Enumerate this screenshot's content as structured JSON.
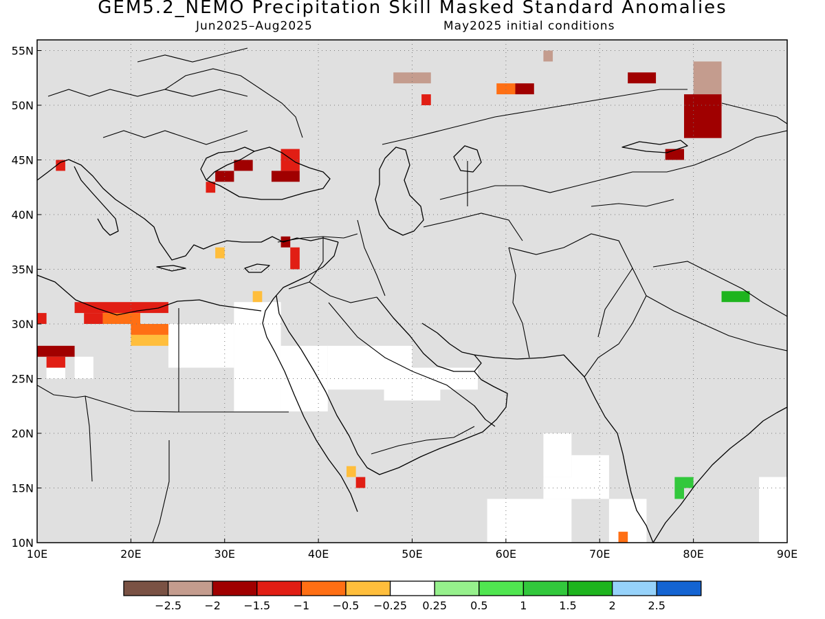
{
  "header": {
    "title": "GEM5.2_NEMO Precipitation Skill Masked Standard Anomalies",
    "season": "Jun2025–Aug2025",
    "init": "May2025 initial conditions"
  },
  "map": {
    "background_color": "#e0e0e0",
    "land_outline_color": "#000000",
    "lon_ticks": [
      "10E",
      "20E",
      "30E",
      "40E",
      "50E",
      "60E",
      "70E",
      "80E",
      "90E"
    ],
    "lat_ticks": [
      "10N",
      "15N",
      "20N",
      "25N",
      "30N",
      "35N",
      "40N",
      "45N",
      "50N",
      "55N"
    ],
    "extent": {
      "lon": [
        10,
        90
      ],
      "lat": [
        10,
        56
      ]
    },
    "anomaly_regions": [
      {
        "lon": [
          10,
          11
        ],
        "lat": [
          30,
          31
        ],
        "bin": -1.0
      },
      {
        "lon": [
          10,
          14
        ],
        "lat": [
          27,
          28
        ],
        "bin": -1.5
      },
      {
        "lon": [
          11,
          13
        ],
        "lat": [
          26,
          27
        ],
        "bin": -1.0
      },
      {
        "lon": [
          12,
          13
        ],
        "lat": [
          44,
          45
        ],
        "bin": -1.0
      },
      {
        "lon": [
          14,
          24
        ],
        "lat": [
          31,
          32
        ],
        "bin": -1.0
      },
      {
        "lon": [
          15,
          17
        ],
        "lat": [
          30,
          31
        ],
        "bin": -1.0
      },
      {
        "lon": [
          17,
          21
        ],
        "lat": [
          30,
          31
        ],
        "bin": -0.5
      },
      {
        "lon": [
          20,
          24
        ],
        "lat": [
          29,
          30
        ],
        "bin": -0.5
      },
      {
        "lon": [
          20,
          24
        ],
        "lat": [
          28,
          29
        ],
        "bin": -0.25
      },
      {
        "lon": [
          28,
          29
        ],
        "lat": [
          42,
          43
        ],
        "bin": -1.0
      },
      {
        "lon": [
          29,
          31
        ],
        "lat": [
          43,
          44
        ],
        "bin": -1.5
      },
      {
        "lon": [
          31,
          33
        ],
        "lat": [
          44,
          45
        ],
        "bin": -1.5
      },
      {
        "lon": [
          29,
          30
        ],
        "lat": [
          36,
          37
        ],
        "bin": -0.25
      },
      {
        "lon": [
          33,
          34
        ],
        "lat": [
          32,
          33
        ],
        "bin": -0.25
      },
      {
        "lon": [
          36,
          38
        ],
        "lat": [
          44,
          46
        ],
        "bin": -1.0
      },
      {
        "lon": [
          35,
          38
        ],
        "lat": [
          43,
          44
        ],
        "bin": -1.5
      },
      {
        "lon": [
          36,
          37
        ],
        "lat": [
          37,
          38
        ],
        "bin": -1.5
      },
      {
        "lon": [
          37,
          38
        ],
        "lat": [
          35,
          37
        ],
        "bin": -1.0
      },
      {
        "lon": [
          43,
          44
        ],
        "lat": [
          16,
          17
        ],
        "bin": -0.25
      },
      {
        "lon": [
          44,
          45
        ],
        "lat": [
          15,
          16
        ],
        "bin": -1.0
      },
      {
        "lon": [
          48,
          52
        ],
        "lat": [
          52,
          53
        ],
        "bin": -2.0
      },
      {
        "lon": [
          51,
          52
        ],
        "lat": [
          50,
          51
        ],
        "bin": -1.0
      },
      {
        "lon": [
          59,
          61
        ],
        "lat": [
          51,
          52
        ],
        "bin": -0.5
      },
      {
        "lon": [
          61,
          63
        ],
        "lat": [
          51,
          52
        ],
        "bin": -1.5
      },
      {
        "lon": [
          64,
          65
        ],
        "lat": [
          54,
          55
        ],
        "bin": -2.0
      },
      {
        "lon": [
          73,
          76
        ],
        "lat": [
          52,
          53
        ],
        "bin": -1.5
      },
      {
        "lon": [
          80,
          83
        ],
        "lat": [
          51,
          54
        ],
        "bin": -2.0
      },
      {
        "lon": [
          79,
          83
        ],
        "lat": [
          47,
          51
        ],
        "bin": -1.5
      },
      {
        "lon": [
          77,
          79
        ],
        "lat": [
          45,
          46
        ],
        "bin": -1.5
      },
      {
        "lon": [
          83,
          86
        ],
        "lat": [
          32,
          33
        ],
        "bin": 1.5
      },
      {
        "lon": [
          78,
          80
        ],
        "lat": [
          15,
          16
        ],
        "bin": 1.0
      },
      {
        "lon": [
          78,
          79
        ],
        "lat": [
          14,
          15
        ],
        "bin": 1.0
      },
      {
        "lon": [
          72,
          73
        ],
        "lat": [
          10,
          11
        ],
        "bin": -0.5
      }
    ],
    "no_skill_regions": [
      {
        "lon": [
          24,
          31
        ],
        "lat": [
          26,
          30
        ]
      },
      {
        "lon": [
          31,
          36
        ],
        "lat": [
          22,
          32
        ]
      },
      {
        "lon": [
          36,
          41
        ],
        "lat": [
          22,
          28
        ]
      },
      {
        "lon": [
          41,
          50
        ],
        "lat": [
          24,
          28
        ]
      },
      {
        "lon": [
          47,
          53
        ],
        "lat": [
          23,
          26
        ]
      },
      {
        "lon": [
          52,
          57
        ],
        "lat": [
          24,
          26
        ]
      },
      {
        "lon": [
          58,
          67
        ],
        "lat": [
          10,
          14
        ]
      },
      {
        "lon": [
          64,
          68
        ],
        "lat": [
          14,
          16
        ]
      },
      {
        "lon": [
          67,
          71
        ],
        "lat": [
          14,
          18
        ]
      },
      {
        "lon": [
          71,
          75
        ],
        "lat": [
          10,
          14
        ]
      },
      {
        "lon": [
          64,
          67
        ],
        "lat": [
          16,
          20
        ]
      },
      {
        "lon": [
          87,
          90
        ],
        "lat": [
          10,
          16
        ]
      },
      {
        "lon": [
          14,
          16
        ],
        "lat": [
          25,
          27
        ]
      },
      {
        "lon": [
          11,
          13
        ],
        "lat": [
          25,
          26
        ]
      }
    ]
  },
  "legend": {
    "colors": [
      "#7a5244",
      "#c49c8e",
      "#a00000",
      "#e11e14",
      "#ff6f14",
      "#ffbe3c",
      "#ffffff",
      "#96f08c",
      "#50e650",
      "#32c83c",
      "#1eb41e",
      "#96d2fa",
      "#1464d2"
    ],
    "labels": [
      "−2.5",
      "−2",
      "−1.5",
      "−1",
      "−0.5",
      "−0.25",
      "0.25",
      "0.5",
      "1",
      "1.5",
      "2",
      "2.5"
    ]
  }
}
